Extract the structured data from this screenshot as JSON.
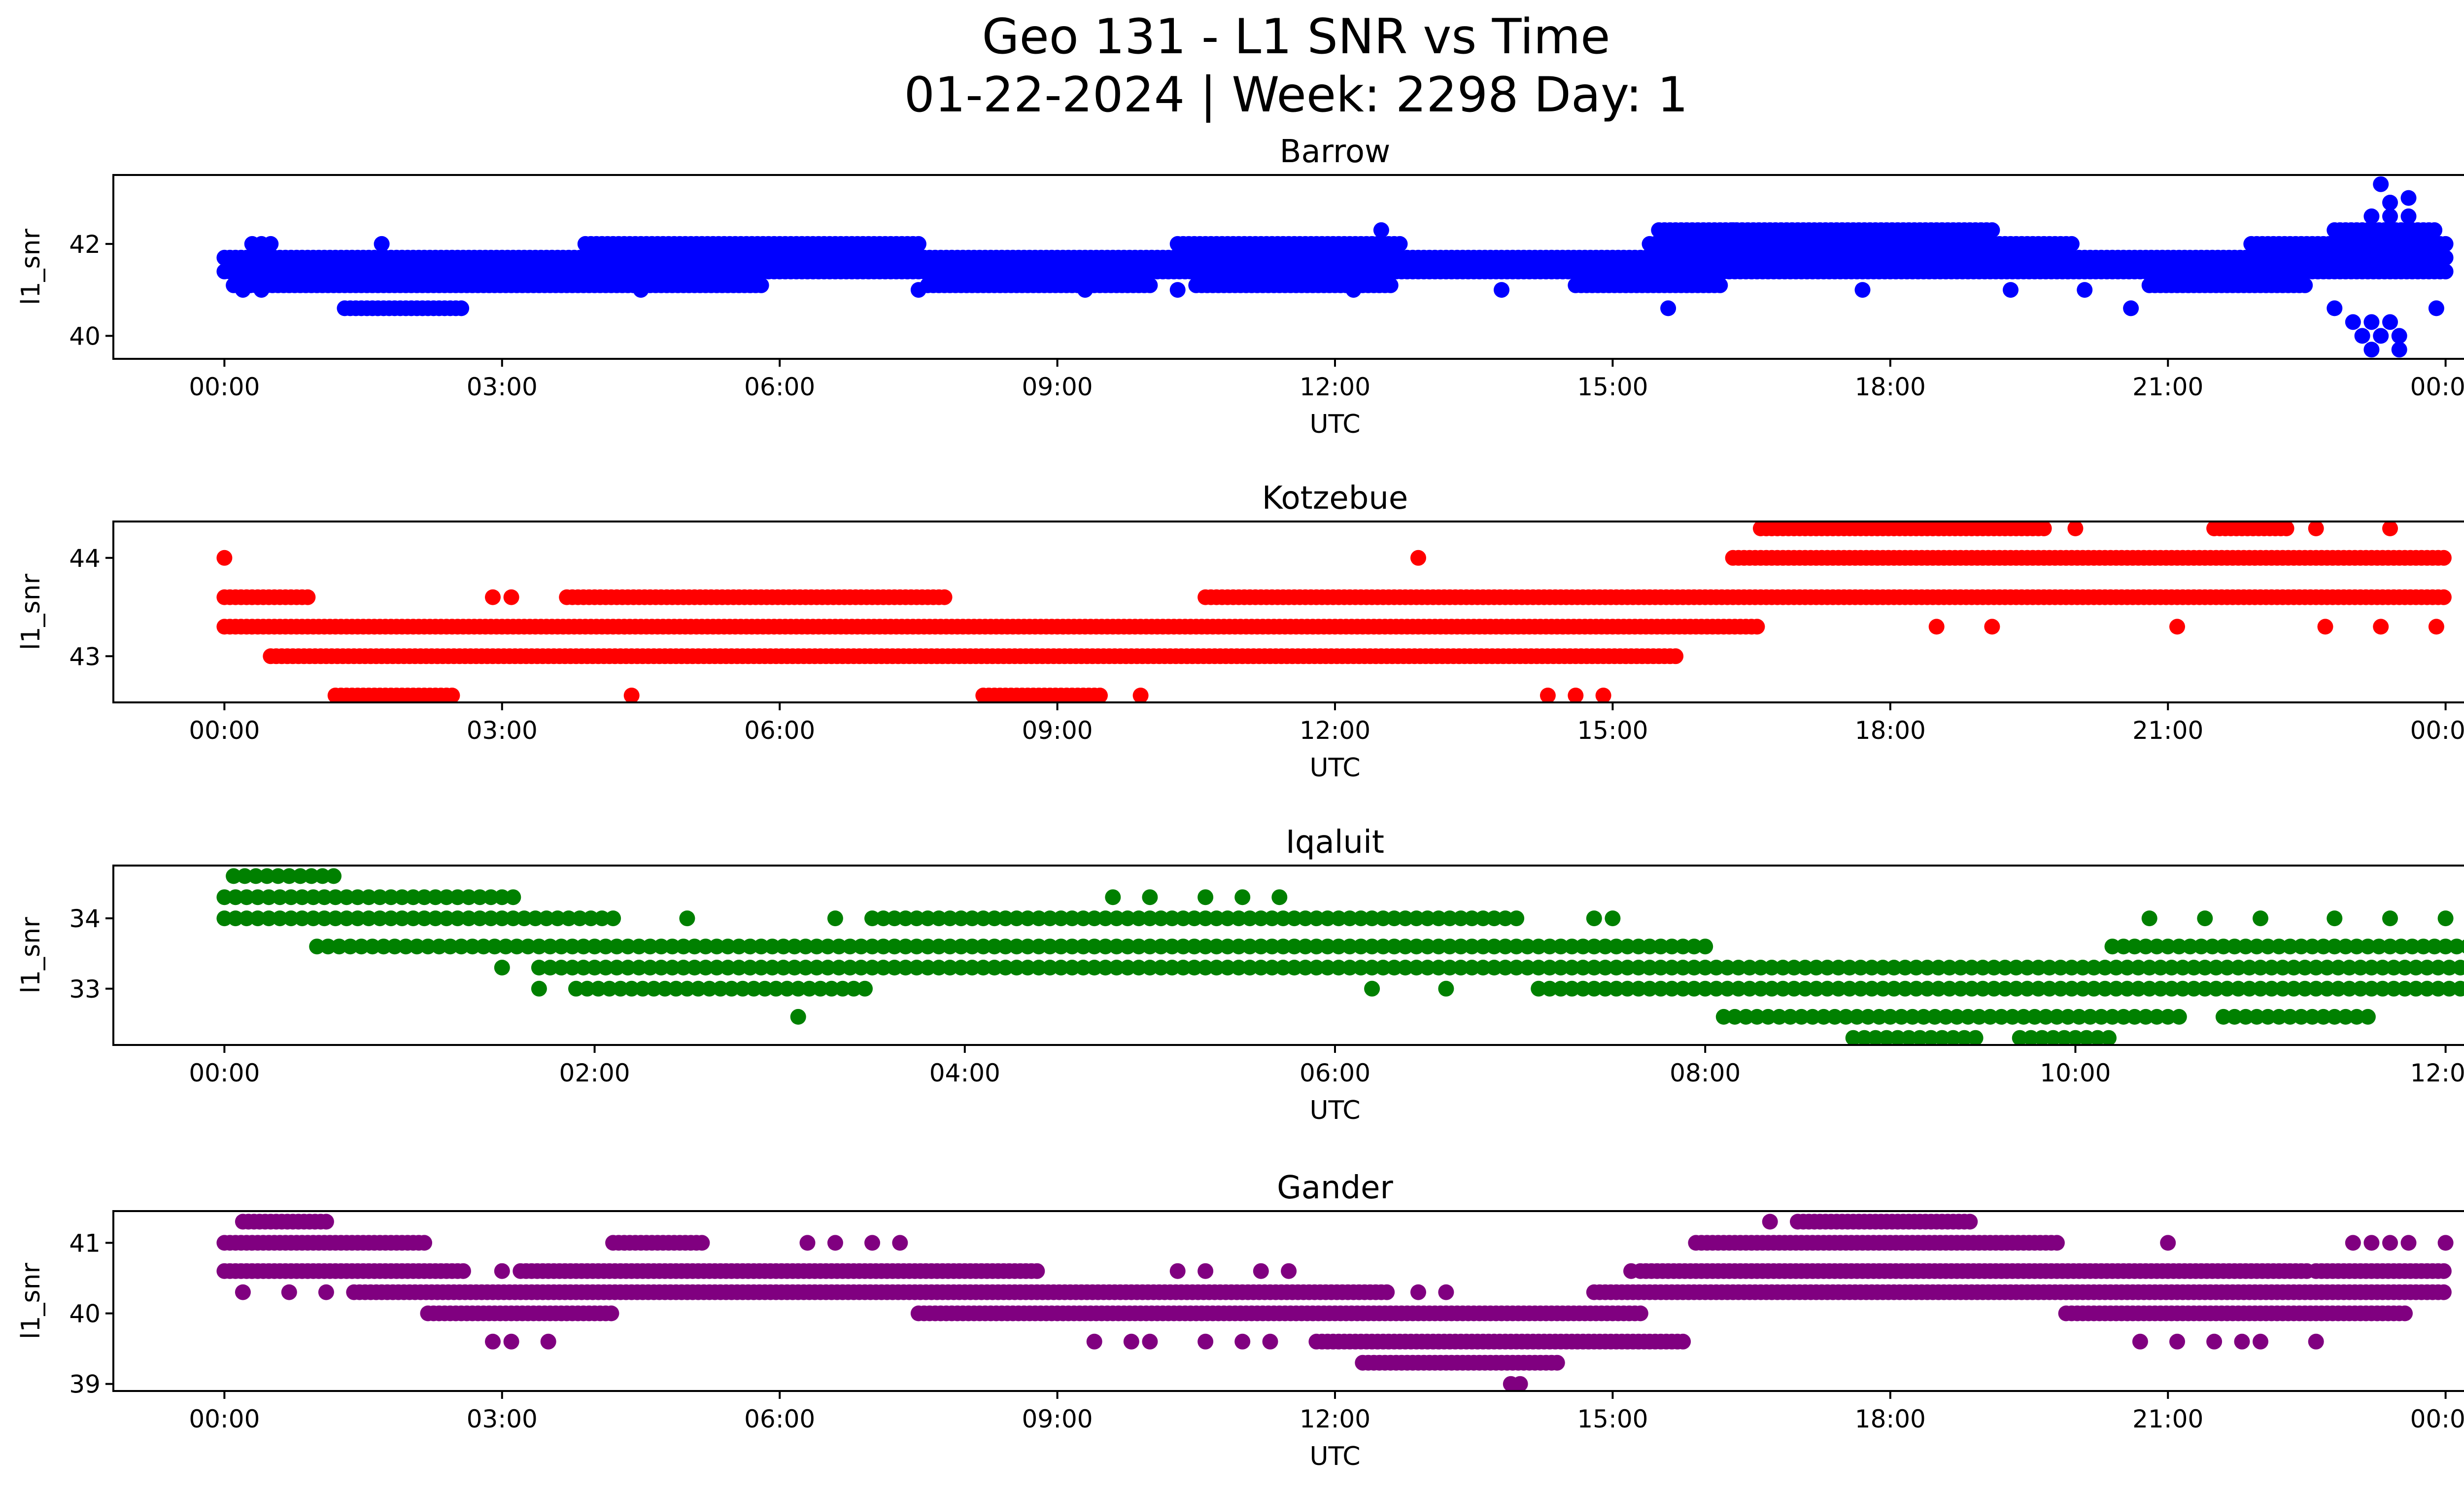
{
  "suptitle_line1": "Geo 131 - L1 SNR vs Time",
  "suptitle_line2": "01-22-2024 | Week: 2298 Day: 1",
  "chart_data": [
    {
      "type": "scatter",
      "title": "Barrow",
      "xlabel": "UTC",
      "ylabel": "l1_snr",
      "color": "#0000ff",
      "xlim_hours": [
        -1.2,
        25.2
      ],
      "ylim": [
        39.5,
        43.5
      ],
      "xticks": [
        0,
        3,
        6,
        9,
        12,
        15,
        18,
        21,
        24
      ],
      "xtick_labels": [
        "00:00",
        "03:00",
        "06:00",
        "09:00",
        "12:00",
        "15:00",
        "18:00",
        "21:00",
        "00:00"
      ],
      "yticks": [
        40,
        42
      ],
      "ytick_labels": [
        "40",
        "42"
      ],
      "series": [
        {
          "name": "41.4 band",
          "y": 41.4,
          "ranges": [
            [
              0,
              24
            ]
          ]
        },
        {
          "name": "41.7 band",
          "y": 41.7,
          "ranges": [
            [
              0,
              24
            ]
          ]
        },
        {
          "name": "41.1 band",
          "y": 41.1,
          "ranges": [
            [
              0.1,
              5.8
            ],
            [
              7.6,
              10
            ],
            [
              10.5,
              12.6
            ],
            [
              14.6,
              16.2
            ],
            [
              20.8,
              22.5
            ]
          ]
        },
        {
          "name": "42.0 band",
          "y": 42.0,
          "ranges": [
            [
              3.9,
              7.5
            ],
            [
              10.3,
              12.7
            ],
            [
              15.4,
              20.0
            ],
            [
              21.9,
              24
            ]
          ]
        },
        {
          "name": "40.6 band",
          "y": 40.6,
          "ranges": [
            [
              1.3,
              2.6
            ]
          ]
        },
        {
          "name": "42.3 band",
          "y": 42.3,
          "ranges": [
            [
              15.5,
              19.1
            ],
            [
              22.8,
              23.9
            ]
          ]
        }
      ],
      "points": [
        [
          0.3,
          42.0
        ],
        [
          0.4,
          42.0
        ],
        [
          0.5,
          42.0
        ],
        [
          1.7,
          42.0
        ],
        [
          0.2,
          41.0
        ],
        [
          0.4,
          41.0
        ],
        [
          4.5,
          41.0
        ],
        [
          7.5,
          41.0
        ],
        [
          9.3,
          41.0
        ],
        [
          10.3,
          41.0
        ],
        [
          12.2,
          41.0
        ],
        [
          13.8,
          41.0
        ],
        [
          17.7,
          41.0
        ],
        [
          19.3,
          41.0
        ],
        [
          20.1,
          41.0
        ],
        [
          15.6,
          40.6
        ],
        [
          20.6,
          40.6
        ],
        [
          23.9,
          40.6
        ],
        [
          12.5,
          42.3
        ],
        [
          16.3,
          42.3
        ],
        [
          23.2,
          42.6
        ],
        [
          23.4,
          42.6
        ],
        [
          23.6,
          42.6
        ],
        [
          23.4,
          42.9
        ],
        [
          23.6,
          43.0
        ],
        [
          23.3,
          43.3
        ],
        [
          22.8,
          40.6
        ],
        [
          23.0,
          40.3
        ],
        [
          23.2,
          40.3
        ],
        [
          23.4,
          40.3
        ],
        [
          23.1,
          40.0
        ],
        [
          23.3,
          40.0
        ],
        [
          23.5,
          40.0
        ],
        [
          23.2,
          39.7
        ],
        [
          23.5,
          39.7
        ]
      ]
    },
    {
      "type": "scatter",
      "title": "Kotzebue",
      "xlabel": "UTC",
      "ylabel": "l1_snr",
      "color": "#ff0000",
      "xlim_hours": [
        -1.2,
        25.2
      ],
      "ylim": [
        42.53,
        44.37
      ],
      "xticks": [
        0,
        3,
        6,
        9,
        12,
        15,
        18,
        21,
        24
      ],
      "xtick_labels": [
        "00:00",
        "03:00",
        "06:00",
        "09:00",
        "12:00",
        "15:00",
        "18:00",
        "21:00",
        "00:00"
      ],
      "yticks": [
        43,
        44
      ],
      "ytick_labels": [
        "43",
        "44"
      ],
      "series": [
        {
          "name": "43.3 band",
          "y": 43.3,
          "ranges": [
            [
              0,
              16.6
            ]
          ]
        },
        {
          "name": "43.6 band",
          "y": 43.6,
          "ranges": [
            [
              0,
              0.9
            ],
            [
              3.7,
              7.8
            ],
            [
              10.6,
              24
            ]
          ]
        },
        {
          "name": "43.0 band",
          "y": 43.0,
          "ranges": [
            [
              0.5,
              15.7
            ]
          ]
        },
        {
          "name": "44.0 band",
          "y": 44.0,
          "ranges": [
            [
              16.3,
              24
            ]
          ]
        },
        {
          "name": "42.6 band",
          "y": 42.6,
          "ranges": [
            [
              1.2,
              2.5
            ],
            [
              8.2,
              9.5
            ]
          ]
        },
        {
          "name": "44.3 band",
          "y": 44.3,
          "ranges": [
            [
              16.6,
              19.7
            ],
            [
              21.5,
              22.3
            ]
          ]
        }
      ],
      "points": [
        [
          0,
          44.0
        ],
        [
          12.9,
          44.0
        ],
        [
          4.4,
          42.6
        ],
        [
          9.9,
          42.6
        ],
        [
          14.3,
          42.6
        ],
        [
          14.6,
          42.6
        ],
        [
          14.9,
          42.6
        ],
        [
          2.9,
          43.6
        ],
        [
          3.1,
          43.6
        ],
        [
          18.5,
          43.3
        ],
        [
          19.1,
          43.3
        ],
        [
          21.1,
          43.3
        ],
        [
          22.7,
          43.3
        ],
        [
          23.3,
          43.3
        ],
        [
          23.9,
          43.3
        ],
        [
          20.0,
          44.3
        ],
        [
          22.6,
          44.3
        ],
        [
          23.4,
          44.3
        ]
      ]
    },
    {
      "type": "scatter",
      "title": "Iqaluit",
      "xlabel": "UTC",
      "ylabel": "l1_snr",
      "color": "#008000",
      "xlim_hours": [
        -0.6,
        12.6
      ],
      "ylim": [
        32.2,
        34.75
      ],
      "xticks": [
        0,
        2,
        4,
        6,
        8,
        10,
        12
      ],
      "xtick_labels": [
        "00:00",
        "02:00",
        "04:00",
        "06:00",
        "08:00",
        "10:00",
        "12:00"
      ],
      "yticks": [
        33,
        34
      ],
      "ytick_labels": [
        "33",
        "34"
      ],
      "series": [
        {
          "name": "34.3 band",
          "y": 34.3,
          "ranges": [
            [
              0,
              1.6
            ]
          ]
        },
        {
          "name": "34.0 band",
          "y": 34.0,
          "ranges": [
            [
              0,
              2.1
            ],
            [
              3.5,
              7.0
            ]
          ]
        },
        {
          "name": "34.6 band",
          "y": 34.6,
          "ranges": [
            [
              0.05,
              0.6
            ]
          ]
        },
        {
          "name": "33.6 band",
          "y": 33.6,
          "ranges": [
            [
              0.5,
              8.0
            ],
            [
              10.2,
              12.2
            ]
          ]
        },
        {
          "name": "33.3 band",
          "y": 33.3,
          "ranges": [
            [
              1.7,
              12.3
            ]
          ]
        },
        {
          "name": "33.0 band",
          "y": 33.0,
          "ranges": [
            [
              1.9,
              3.5
            ],
            [
              7.1,
              12.3
            ]
          ]
        },
        {
          "name": "32.6 band",
          "y": 32.6,
          "ranges": [
            [
              8.1,
              10.6
            ],
            [
              10.8,
              11.6
            ]
          ]
        },
        {
          "name": "32.3 band",
          "y": 32.3,
          "ranges": [
            [
              8.8,
              9.5
            ],
            [
              9.7,
              10.2
            ]
          ]
        }
      ],
      "points": [
        [
          3.1,
          32.6
        ],
        [
          1.5,
          33.3
        ],
        [
          1.7,
          33.0
        ],
        [
          3.3,
          34.0
        ],
        [
          2.5,
          34.0
        ],
        [
          4.8,
          34.3
        ],
        [
          5.0,
          34.3
        ],
        [
          5.3,
          34.3
        ],
        [
          5.5,
          34.3
        ],
        [
          5.7,
          34.3
        ],
        [
          6.2,
          33.0
        ],
        [
          6.6,
          33.0
        ],
        [
          7.4,
          34.0
        ],
        [
          7.5,
          34.0
        ],
        [
          10.4,
          34.0
        ],
        [
          10.7,
          34.0
        ],
        [
          11.0,
          34.0
        ],
        [
          11.4,
          34.0
        ],
        [
          11.7,
          34.0
        ],
        [
          12.0,
          34.0
        ],
        [
          12.2,
          33.6
        ]
      ]
    },
    {
      "type": "scatter",
      "title": "Gander",
      "xlabel": "UTC",
      "ylabel": "l1_snr",
      "color": "#800080",
      "xlim_hours": [
        -1.2,
        25.2
      ],
      "ylim": [
        38.9,
        41.45
      ],
      "xticks": [
        0,
        3,
        6,
        9,
        12,
        15,
        18,
        21,
        24
      ],
      "xtick_labels": [
        "00:00",
        "03:00",
        "06:00",
        "09:00",
        "12:00",
        "15:00",
        "18:00",
        "21:00",
        "00:00"
      ],
      "yticks": [
        39,
        40,
        41
      ],
      "ytick_labels": [
        "39",
        "40",
        "41"
      ],
      "series": [
        {
          "name": "41.3 band",
          "y": 41.3,
          "ranges": [
            [
              0.2,
              1.1
            ],
            [
              17.0,
              18.9
            ]
          ]
        },
        {
          "name": "41.0 band",
          "y": 41.0,
          "ranges": [
            [
              0,
              2.2
            ],
            [
              4.2,
              5.2
            ],
            [
              15.9,
              19.8
            ]
          ]
        },
        {
          "name": "40.6 band",
          "y": 40.6,
          "ranges": [
            [
              0,
              2.6
            ],
            [
              3.2,
              8.8
            ],
            [
              15.3,
              22.5
            ],
            [
              22.6,
              24
            ]
          ]
        },
        {
          "name": "40.3 band",
          "y": 40.3,
          "ranges": [
            [
              1.4,
              12.6
            ],
            [
              14.8,
              24
            ]
          ]
        },
        {
          "name": "40.0 band",
          "y": 40.0,
          "ranges": [
            [
              2.2,
              4.2
            ],
            [
              7.5,
              15.3
            ],
            [
              19.9,
              23.6
            ]
          ]
        },
        {
          "name": "39.6 band",
          "y": 39.6,
          "ranges": [
            [
              11.8,
              15.8
            ]
          ]
        },
        {
          "name": "39.3 band",
          "y": 39.3,
          "ranges": [
            [
              12.3,
              14.4
            ]
          ]
        }
      ],
      "points": [
        [
          0.2,
          40.3
        ],
        [
          0.7,
          40.3
        ],
        [
          1.1,
          40.3
        ],
        [
          3.0,
          40.6
        ],
        [
          2.9,
          39.6
        ],
        [
          3.1,
          39.6
        ],
        [
          3.5,
          39.6
        ],
        [
          9.4,
          39.6
        ],
        [
          9.8,
          39.6
        ],
        [
          10.0,
          39.6
        ],
        [
          10.6,
          39.6
        ],
        [
          11.0,
          39.6
        ],
        [
          11.3,
          39.6
        ],
        [
          6.3,
          41.0
        ],
        [
          6.6,
          41.0
        ],
        [
          7.0,
          41.0
        ],
        [
          7.3,
          41.0
        ],
        [
          10.3,
          40.6
        ],
        [
          10.6,
          40.6
        ],
        [
          11.2,
          40.6
        ],
        [
          11.5,
          40.6
        ],
        [
          12.9,
          40.3
        ],
        [
          13.2,
          40.3
        ],
        [
          13.9,
          39.0
        ],
        [
          14.0,
          39.0
        ],
        [
          15.2,
          40.6
        ],
        [
          16.7,
          41.3
        ],
        [
          20.7,
          39.6
        ],
        [
          21.1,
          39.6
        ],
        [
          21.5,
          39.6
        ],
        [
          21.8,
          39.6
        ],
        [
          22.0,
          39.6
        ],
        [
          22.6,
          39.6
        ],
        [
          21.0,
          41.0
        ],
        [
          23.0,
          41.0
        ],
        [
          23.2,
          41.0
        ],
        [
          23.4,
          41.0
        ],
        [
          23.6,
          41.0
        ],
        [
          24.0,
          41.0
        ]
      ]
    }
  ]
}
